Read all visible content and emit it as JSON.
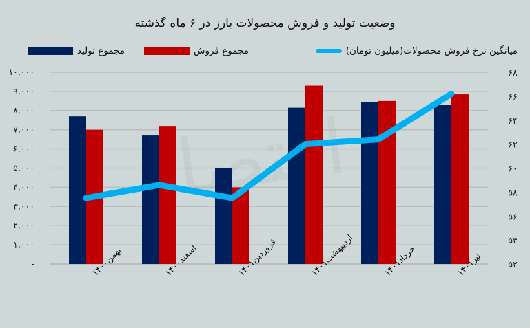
{
  "title": "وضعیت تولید و فروش محصولات بارز در ۶ ماه گذشته",
  "legend": {
    "production": "مجموع تولید",
    "sales": "مجموع فروش",
    "avg_price": "میانگین نرخ فروش محصولات(میلیون تومان)"
  },
  "colors": {
    "production": "#00205c",
    "sales": "#c00000",
    "avg_price": "#00b0f0",
    "background": "#cfd8d8",
    "gridline": "#bdbdbd"
  },
  "y_left_ticks": [
    "۱۰,۰۰۰",
    "۹,۰۰۰",
    "۸,۰۰۰",
    "۷,۰۰۰",
    "۶,۰۰۰",
    "۵,۰۰۰",
    "۴,۰۰۰",
    "۳,۰۰۰",
    "۲,۰۰۰",
    "۱,۰۰۰",
    "-"
  ],
  "y_right_ticks": [
    "۶۸",
    "۶۶",
    "۶۴",
    "۶۲",
    "۶۰",
    "۵۸",
    "۵۶",
    "۵۴",
    "۵۲"
  ],
  "x_labels": [
    "بهمن۱۴۰۰",
    "اسفند۱۴۰۰",
    "فروردین۱۴۰۱",
    "اردیبهشت۱۴۰۱",
    "خرداد۱۴۰۱",
    "تیر۱۴۰۱"
  ],
  "chart_data": {
    "type": "bar",
    "title": "وضعیت تولید و فروش محصولات بارز در ۶ ماه گذشته",
    "categories": [
      "بهمن۱۴۰۰",
      "اسفند۱۴۰۰",
      "فروردین۱۴۰۱",
      "اردیبهشت۱۴۰۱",
      "خرداد۱۴۰۱",
      "تیر۱۴۰۱"
    ],
    "series": [
      {
        "name": "مجموع تولید",
        "type": "bar",
        "axis": "left",
        "values": [
          7700,
          6700,
          5000,
          8150,
          8450,
          8300
        ]
      },
      {
        "name": "مجموع فروش",
        "type": "bar",
        "axis": "left",
        "values": [
          7000,
          7200,
          4000,
          9300,
          8500,
          8850
        ]
      },
      {
        "name": "میانگین نرخ فروش محصولات(میلیون تومان)",
        "type": "line",
        "axis": "right",
        "values": [
          57.5,
          58.6,
          57.5,
          62.0,
          62.4,
          66.2
        ]
      }
    ],
    "xlabel": "",
    "ylabel": "",
    "ylim": [
      0,
      10000
    ],
    "y2lim": [
      52,
      68
    ],
    "grid": true,
    "legend_position": "top"
  }
}
